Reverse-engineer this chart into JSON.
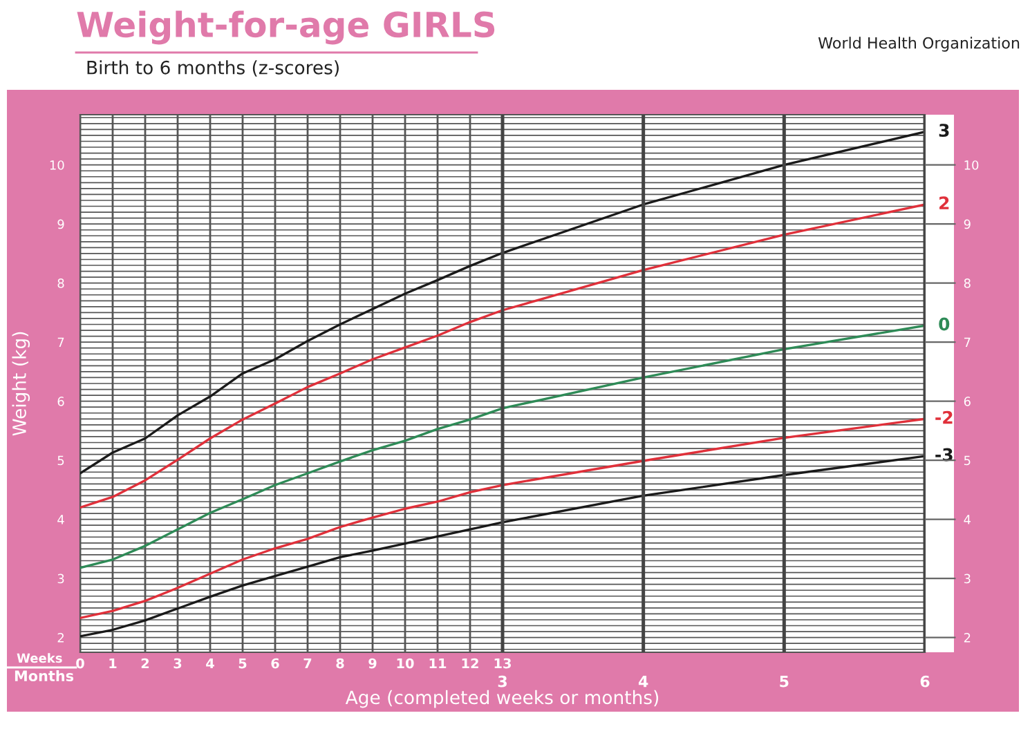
{
  "chart_data": {
    "type": "line",
    "title": "Weight-for-age GIRLS",
    "subtitle": "Birth to 6 months (z-scores)",
    "xlabel": "Age (completed weeks or months)",
    "ylabel": "Weight (kg)",
    "annotations": [
      "World Health Organization",
      "Weeks",
      "Months"
    ],
    "x": [
      0,
      1,
      2,
      3,
      4,
      5,
      6,
      7,
      8,
      9,
      10,
      11,
      12,
      13,
      17.33,
      21.67,
      26
    ],
    "series": [
      {
        "name": "3",
        "color": "#1a1a1a",
        "values": [
          4.78,
          5.13,
          5.37,
          5.76,
          6.08,
          6.47,
          6.71,
          7.02,
          7.3,
          7.56,
          7.82,
          8.05,
          8.29,
          8.51,
          9.33,
          10.0,
          10.56
        ]
      },
      {
        "name": "2",
        "color": "#e0303a",
        "values": [
          4.2,
          4.38,
          4.66,
          5.01,
          5.37,
          5.69,
          5.96,
          6.24,
          6.47,
          6.71,
          6.91,
          7.11,
          7.34,
          7.54,
          8.22,
          8.82,
          9.33
        ]
      },
      {
        "name": "0",
        "color": "#2e8b57",
        "values": [
          3.18,
          3.32,
          3.55,
          3.83,
          4.11,
          4.34,
          4.58,
          4.78,
          4.98,
          5.17,
          5.33,
          5.53,
          5.69,
          5.88,
          6.4,
          6.88,
          7.28
        ]
      },
      {
        "name": "-2",
        "color": "#e0303a",
        "values": [
          2.33,
          2.45,
          2.62,
          2.84,
          3.08,
          3.32,
          3.51,
          3.67,
          3.87,
          4.03,
          4.18,
          4.3,
          4.46,
          4.58,
          4.99,
          5.38,
          5.7
        ]
      },
      {
        "name": "-3",
        "color": "#1a1a1a",
        "values": [
          2.02,
          2.13,
          2.29,
          2.49,
          2.69,
          2.88,
          3.04,
          3.2,
          3.36,
          3.47,
          3.59,
          3.71,
          3.83,
          3.95,
          4.4,
          4.75,
          5.07
        ]
      }
    ],
    "xlim": [
      0,
      26
    ],
    "xticks": [
      0,
      1,
      2,
      3,
      4,
      5,
      6,
      7,
      8,
      9,
      10,
      11,
      12,
      13
    ],
    "x2lim": [
      0,
      6
    ],
    "x2ticks": [
      3,
      4,
      5,
      6
    ],
    "ylim": [
      1.75,
      10.85
    ],
    "yticks": [
      {
        "value": 1.8,
        "label": null
      },
      {
        "value": 1.9,
        "label": null
      },
      2,
      {
        "value": 2.1,
        "label": null
      },
      {
        "value": 2.2,
        "label": null
      },
      {
        "value": 2.3,
        "label": null
      },
      {
        "value": 2.4,
        "label": null
      },
      {
        "value": 2.5,
        "label": null
      },
      {
        "value": 2.6,
        "label": null
      },
      {
        "value": 2.7,
        "label": null
      },
      {
        "value": 2.8,
        "label": null
      },
      {
        "value": 2.9,
        "label": null
      },
      3,
      {
        "value": 3.1,
        "label": null
      },
      {
        "value": 3.2,
        "label": null
      },
      {
        "value": 3.3,
        "label": null
      },
      {
        "value": 3.4,
        "label": null
      },
      {
        "value": 3.5,
        "label": null
      },
      {
        "value": 3.6,
        "label": null
      },
      {
        "value": 3.7,
        "label": null
      },
      {
        "value": 3.8,
        "label": null
      },
      {
        "value": 3.9,
        "label": null
      },
      4,
      {
        "value": 4.1,
        "label": null
      },
      {
        "value": 4.2,
        "label": null
      },
      {
        "value": 4.3,
        "label": null
      },
      {
        "value": 4.4,
        "label": null
      },
      {
        "value": 4.5,
        "label": null
      },
      {
        "value": 4.6,
        "label": null
      },
      {
        "value": 4.7,
        "label": null
      },
      {
        "value": 4.8,
        "label": null
      },
      {
        "value": 4.9,
        "label": null
      },
      5,
      {
        "value": 5.1,
        "label": null
      },
      {
        "value": 5.2,
        "label": null
      },
      {
        "value": 5.3,
        "label": null
      },
      {
        "value": 5.4,
        "label": null
      },
      {
        "value": 5.5,
        "label": null
      },
      {
        "value": 5.6,
        "label": null
      },
      {
        "value": 5.7,
        "label": null
      },
      {
        "value": 5.8,
        "label": null
      },
      {
        "value": 5.9,
        "label": null
      },
      6,
      {
        "value": 6.1,
        "label": null
      },
      {
        "value": 6.2,
        "label": null
      },
      {
        "value": 6.3,
        "label": null
      },
      {
        "value": 6.4,
        "label": null
      },
      {
        "value": 6.5,
        "label": null
      },
      {
        "value": 6.6,
        "label": null
      },
      {
        "value": 6.7,
        "label": null
      },
      {
        "value": 6.8,
        "label": null
      },
      {
        "value": 6.9,
        "label": null
      },
      7,
      {
        "value": 7.1,
        "label": null
      },
      {
        "value": 7.2,
        "label": null
      },
      {
        "value": 7.3,
        "label": null
      },
      {
        "value": 7.4,
        "label": null
      },
      {
        "value": 7.5,
        "label": null
      },
      {
        "value": 7.6,
        "label": null
      },
      {
        "value": 7.7,
        "label": null
      },
      {
        "value": 7.8,
        "label": null
      },
      {
        "value": 7.9,
        "label": null
      },
      8,
      {
        "value": 8.1,
        "label": null
      },
      {
        "value": 8.2,
        "label": null
      },
      {
        "value": 8.3,
        "label": null
      },
      {
        "value": 8.4,
        "label": null
      },
      {
        "value": 8.5,
        "label": null
      },
      {
        "value": 8.6,
        "label": null
      },
      {
        "value": 8.7,
        "label": null
      },
      {
        "value": 8.8,
        "label": null
      },
      {
        "value": 8.9,
        "label": null
      },
      9,
      {
        "value": 9.1,
        "label": null
      },
      {
        "value": 9.2,
        "label": null
      },
      {
        "value": 9.3,
        "label": null
      },
      {
        "value": 9.4,
        "label": null
      },
      {
        "value": 9.5,
        "label": null
      },
      {
        "value": 9.6,
        "label": null
      },
      {
        "value": 9.7,
        "label": null
      },
      {
        "value": 9.8,
        "label": null
      },
      {
        "value": 9.9,
        "label": null
      },
      10,
      {
        "value": 10.1,
        "label": null
      },
      {
        "value": 10.2,
        "label": null
      },
      {
        "value": 10.3,
        "label": null
      },
      {
        "value": 10.4,
        "label": null
      },
      {
        "value": 10.5,
        "label": null
      },
      {
        "value": 10.6,
        "label": null
      },
      {
        "value": 10.7,
        "label": null
      },
      {
        "value": 10.8,
        "label": null
      }
    ],
    "y2lim": [
      1.75,
      10.85
    ],
    "y2ticks": [
      2,
      3,
      4,
      5,
      6,
      7,
      8,
      9,
      10
    ],
    "grid": true,
    "line_style": "solid",
    "marker": "none"
  }
}
